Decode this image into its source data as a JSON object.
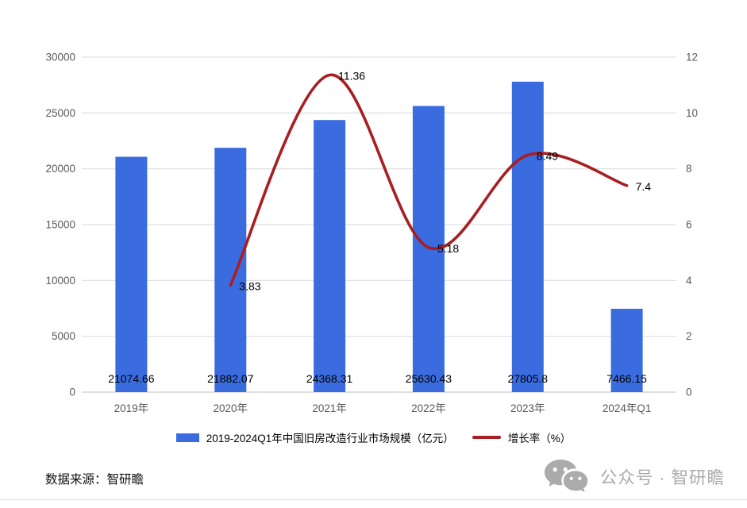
{
  "chart_data": {
    "type": "bar",
    "combo": "bar+line",
    "categories": [
      "2019年",
      "2020年",
      "2021年",
      "2022年",
      "2023年",
      "2024年Q1"
    ],
    "series": [
      {
        "name": "2019-2024Q1年中国旧房改造行业市场规模（亿元）",
        "kind": "bar",
        "axis": "left",
        "color": "#3a6ce0",
        "values": [
          21074.66,
          21882.07,
          24368.31,
          25630.43,
          27805.8,
          7466.15
        ],
        "labels": [
          "21074.66",
          "21882.07",
          "24368.31",
          "25630.43",
          "27805.8",
          "7466.15"
        ]
      },
      {
        "name": "增长率（%）",
        "kind": "line",
        "axis": "right",
        "color": "#a81e22",
        "values": [
          null,
          3.83,
          11.36,
          5.18,
          8.49,
          7.4
        ],
        "labels": [
          null,
          "3.83",
          "11.36",
          "5.18",
          "8.49",
          "7.4"
        ]
      }
    ],
    "left_axis": {
      "min": 0,
      "max": 30000,
      "ticks": [
        "30000",
        "25000",
        "20000",
        "15000",
        "10000",
        "5000",
        "0"
      ]
    },
    "right_axis": {
      "min": 0,
      "max": 12,
      "ticks": [
        "12",
        "10",
        "8",
        "6",
        "4",
        "2",
        "0"
      ]
    },
    "grid": true,
    "grid_color": "#d9d9d9",
    "axis_line_color": "#c0c0c0",
    "tick_text_color": "#595959",
    "value_label_color": "#000000",
    "legend_position": "bottom"
  },
  "legend": {
    "items": [
      {
        "label": "2019-2024Q1年中国旧房改造行业市场规模（亿元）",
        "swatch": "bar",
        "color": "#3a6ce0"
      },
      {
        "label": "增长率（%）",
        "swatch": "line",
        "color": "#a81e22"
      }
    ]
  },
  "footer": {
    "source": "数据来源：智研瞻",
    "wechat_label": "公众号 · 智研瞻",
    "wechat_icon": "wechat-logo-icon",
    "wechat_color": "#ababab"
  }
}
